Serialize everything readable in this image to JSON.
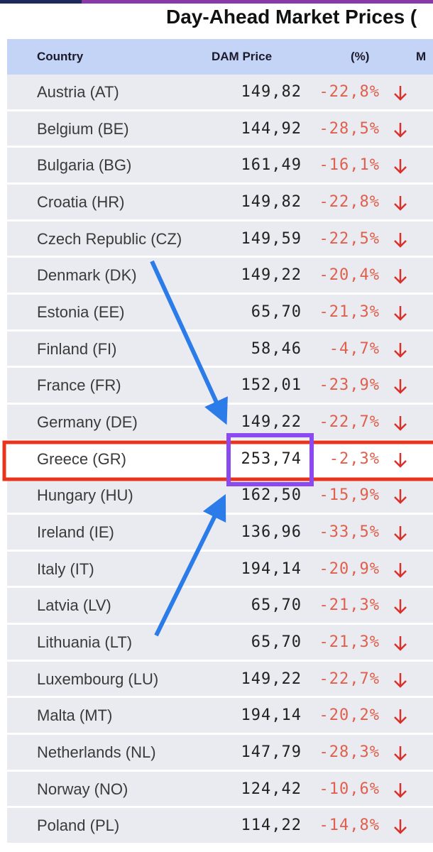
{
  "header": {
    "title": "Day-Ahead Market Prices ("
  },
  "table": {
    "columns": [
      "Country",
      "DAM Price",
      "(%)",
      "M"
    ],
    "rows": [
      [
        "Austria (AT)",
        "149,82",
        "-22,8%"
      ],
      [
        "Belgium (BE)",
        "144,92",
        "-28,5%"
      ],
      [
        "Bulgaria (BG)",
        "161,49",
        "-16,1%"
      ],
      [
        "Croatia (HR)",
        "149,82",
        "-22,8%"
      ],
      [
        "Czech Republic (CZ)",
        "149,59",
        "-22,5%"
      ],
      [
        "Denmark (DK)",
        "149,22",
        "-20,4%"
      ],
      [
        "Estonia (EE)",
        "65,70",
        "-21,3%"
      ],
      [
        "Finland (FI)",
        "58,46",
        "-4,7%"
      ],
      [
        "France (FR)",
        "152,01",
        "-23,9%"
      ],
      [
        "Germany (DE)",
        "149,22",
        "-22,7%"
      ],
      [
        "Greece (GR)",
        "253,74",
        "-2,3%"
      ],
      [
        "Hungary (HU)",
        "162,50",
        "-15,9%"
      ],
      [
        "Ireland (IE)",
        "136,96",
        "-33,5%"
      ],
      [
        "Italy (IT)",
        "194,14",
        "-20,9%"
      ],
      [
        "Latvia (LV)",
        "65,70",
        "-21,3%"
      ],
      [
        "Lithuania (LT)",
        "65,70",
        "-21,3%"
      ],
      [
        "Luxembourg (LU)",
        "149,22",
        "-22,7%"
      ],
      [
        "Malta (MT)",
        "194,14",
        "-20,2%"
      ],
      [
        "Netherlands (NL)",
        "147,79",
        "-28,3%"
      ],
      [
        "Norway (NO)",
        "124,42",
        "-10,6%"
      ],
      [
        "Poland (PL)",
        "114,22",
        "-14,8%"
      ]
    ]
  }
}
